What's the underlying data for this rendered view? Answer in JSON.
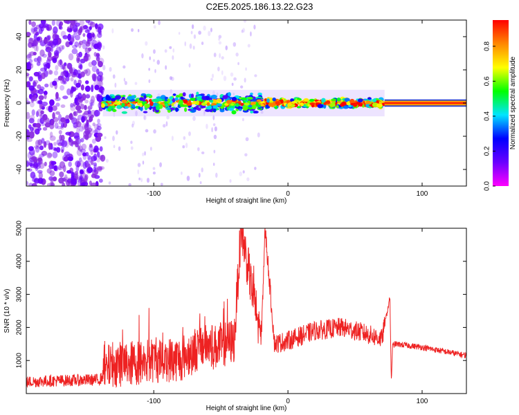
{
  "title": "C2E5.2025.186.13.22.G23",
  "colors": {
    "background": "#ffffff",
    "snr_line": "#ee2222",
    "colorbar_stops": [
      "#ff00ff",
      "#6a00ff",
      "#0000ff",
      "#00e5ff",
      "#00ff00",
      "#ffff00",
      "#ff8800",
      "#ff0000"
    ]
  },
  "chart_data": [
    {
      "type": "heatmap",
      "title": "C2E5.2025.186.13.22.G23",
      "xlabel": "Height of straight line (km)",
      "ylabel": "Frequency (Hz)",
      "xlim": [
        -195,
        133
      ],
      "ylim": [
        -50,
        50
      ],
      "x_ticks": [
        -100,
        0,
        100
      ],
      "y_ticks": [
        -40,
        -20,
        0,
        20,
        40
      ],
      "colorbar": {
        "label": "Normalized spectral amplitude",
        "range": [
          0.0,
          0.95
        ],
        "ticks": [
          0.0,
          0.2,
          0.4,
          0.6,
          0.8
        ]
      },
      "description_points": {
        "noise_region_x": [
          -195,
          -138
        ],
        "signal_start_x": -138,
        "main_band_frequency": 0,
        "steady_signal_from_x": 72,
        "steady_signal_amplitude": 0.9
      }
    },
    {
      "type": "line",
      "xlabel": "Height of straight line (km)",
      "ylabel": "SNR (10 * v/v)",
      "xlim": [
        -195,
        133
      ],
      "ylim": [
        0,
        5000
      ],
      "x_ticks": [
        -100,
        0,
        100
      ],
      "y_ticks": [
        1000,
        2000,
        3000,
        4000,
        5000
      ],
      "series": [
        {
          "x": [
            -195,
            -180,
            -160,
            -140,
            -132,
            -120,
            -100,
            -80,
            -62,
            -55,
            -40,
            -35,
            -20,
            -17,
            -10,
            0,
            20,
            40,
            55,
            70,
            76,
            77,
            78,
            80,
            100,
            120,
            133
          ],
          "values": [
            350,
            380,
            400,
            420,
            900,
            900,
            1000,
            1050,
            1500,
            1400,
            1600,
            5000,
            1600,
            5000,
            1500,
            1600,
            1900,
            2000,
            1850,
            1650,
            2900,
            350,
            1450,
            1500,
            1400,
            1250,
            1150
          ]
        }
      ]
    }
  ]
}
